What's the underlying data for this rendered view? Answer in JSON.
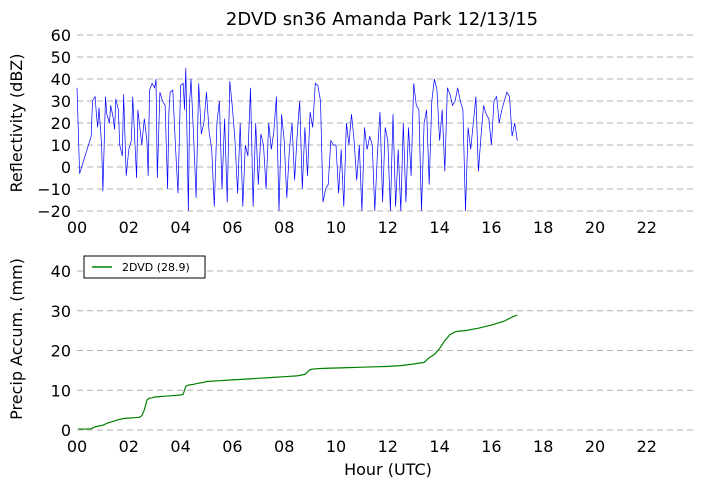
{
  "chart_data": [
    {
      "type": "line",
      "title": "2DVD sn36 Amanda Park 12/13/15",
      "xlabel": "",
      "ylabel": "Reflectivity (dBZ)",
      "xlim": [
        0,
        24
      ],
      "ylim": [
        -20,
        60
      ],
      "grid": "horizontal dashed",
      "x_tick_labels": [
        "00",
        "02",
        "04",
        "06",
        "08",
        "10",
        "12",
        "14",
        "16",
        "18",
        "20",
        "22"
      ],
      "x_tick_values": [
        0,
        2,
        4,
        6,
        8,
        10,
        12,
        14,
        16,
        18,
        20,
        22
      ],
      "y_tick_labels": [
        "60",
        "50",
        "40",
        "30",
        "20",
        "10",
        "0",
        "−10",
        "−20"
      ],
      "y_tick_values": [
        60,
        50,
        40,
        30,
        20,
        10,
        0,
        -10,
        -20
      ],
      "series": [
        {
          "color": "#0000ff",
          "x_start": 0.0,
          "x_end": 17.0,
          "data_start": 0.55,
          "peak": {
            "x": 4.2,
            "y": 45
          },
          "typical_range": [
            -20,
            40
          ],
          "x": [
            0.0,
            0.1,
            0.55,
            0.6,
            0.7,
            0.75,
            0.8,
            0.85,
            0.95,
            1.0,
            1.1,
            1.15,
            1.25,
            1.3,
            1.4,
            1.45,
            1.5,
            1.6,
            1.65,
            1.75,
            1.8,
            1.9,
            2.0,
            2.1,
            2.15,
            2.3,
            2.35,
            2.5,
            2.6,
            2.7,
            2.75,
            2.8,
            2.9,
            3.0,
            3.05,
            3.1,
            3.2,
            3.3,
            3.4,
            3.5,
            3.55,
            3.6,
            3.7,
            3.8,
            3.9,
            4.0,
            4.1,
            4.15,
            4.2,
            4.3,
            4.35,
            4.4,
            4.5,
            4.6,
            4.7,
            4.8,
            4.9,
            5.0,
            5.1,
            5.2,
            5.3,
            5.4,
            5.5,
            5.6,
            5.7,
            5.8,
            5.9,
            6.0,
            6.1,
            6.2,
            6.3,
            6.4,
            6.5,
            6.6,
            6.7,
            6.8,
            6.9,
            7.0,
            7.1,
            7.2,
            7.3,
            7.4,
            7.5,
            7.6,
            7.7,
            7.8,
            7.9,
            8.0,
            8.1,
            8.2,
            8.3,
            8.4,
            8.5,
            8.6,
            8.7,
            8.8,
            8.9,
            9.0,
            9.1,
            9.2,
            9.3,
            9.4,
            9.5,
            9.6,
            9.7,
            9.8,
            9.9,
            10.0,
            10.1,
            10.2,
            10.3,
            10.4,
            10.5,
            10.6,
            10.7,
            10.8,
            10.9,
            11.0,
            11.1,
            11.2,
            11.3,
            11.4,
            11.5,
            11.6,
            11.7,
            11.8,
            11.9,
            12.0,
            12.1,
            12.2,
            12.3,
            12.4,
            12.5,
            12.6,
            12.7,
            12.8,
            12.9,
            13.0,
            13.1,
            13.2,
            13.3,
            13.4,
            13.5,
            13.6,
            13.7,
            13.8,
            13.9,
            14.0,
            14.1,
            14.2,
            14.3,
            14.4,
            14.5,
            14.6,
            14.7,
            14.8,
            14.9,
            15.0,
            15.1,
            15.2,
            15.3,
            15.4,
            15.5,
            15.6,
            15.7,
            15.8,
            15.9,
            16.0,
            16.1,
            16.2,
            16.3,
            16.4,
            16.5,
            16.6,
            16.7,
            16.8,
            16.9,
            17.0
          ],
          "y": [
            36,
            -3,
            14,
            30,
            32,
            24,
            18,
            27,
            10,
            -11,
            32,
            24,
            20,
            28,
            22,
            17,
            31,
            26,
            10,
            5,
            33,
            -4,
            8,
            12,
            32,
            -5,
            26,
            10,
            22,
            12,
            -4,
            35,
            38,
            36,
            40,
            -5,
            34,
            30,
            28,
            -10,
            25,
            34,
            35,
            10,
            -12,
            37,
            38,
            26,
            45,
            -20,
            30,
            40,
            14,
            -14,
            38,
            15,
            20,
            34,
            16,
            8,
            -18,
            20,
            30,
            -10,
            22,
            -16,
            39,
            27,
            12,
            -12,
            20,
            -18,
            10,
            5,
            36,
            -18,
            20,
            -8,
            15,
            10,
            -10,
            20,
            8,
            16,
            32,
            -20,
            24,
            12,
            -14,
            8,
            20,
            -6,
            14,
            30,
            -10,
            18,
            -4,
            25,
            18,
            38,
            37,
            30,
            -16,
            -10,
            -8,
            12,
            10,
            10,
            -12,
            8,
            -18,
            20,
            10,
            24,
            12,
            -6,
            10,
            -20,
            18,
            8,
            14,
            10,
            -20,
            6,
            25,
            -16,
            18,
            12,
            -20,
            24,
            -18,
            8,
            -20,
            20,
            -16,
            18,
            -4,
            38,
            28,
            26,
            -20,
            20,
            26,
            -8,
            30,
            40,
            35,
            12,
            26,
            -2,
            36,
            33,
            28,
            30,
            36,
            30,
            26,
            -20,
            18,
            8,
            20,
            32,
            -2,
            14,
            28,
            24,
            22,
            10,
            30,
            32,
            20,
            26,
            30,
            34,
            32,
            14,
            20,
            12
          ]
        }
      ]
    },
    {
      "type": "line",
      "title": "",
      "xlabel": "Hour (UTC)",
      "ylabel": "Precip Accum. (mm)",
      "xlim": [
        0,
        24
      ],
      "ylim": [
        0,
        47
      ],
      "grid": "horizontal dashed",
      "legend_position": "upper-left",
      "x_tick_labels": [
        "00",
        "02",
        "04",
        "06",
        "08",
        "10",
        "12",
        "14",
        "16",
        "18",
        "20",
        "22"
      ],
      "x_tick_values": [
        0,
        2,
        4,
        6,
        8,
        10,
        12,
        14,
        16,
        18,
        20,
        22
      ],
      "y_tick_labels": [
        "40",
        "30",
        "20",
        "10",
        "0"
      ],
      "y_tick_values": [
        40,
        30,
        20,
        10,
        0
      ],
      "series": [
        {
          "name": "2DVD (28.9)",
          "color": "#008000",
          "final_value": 28.9,
          "x": [
            0.05,
            0.2,
            0.55,
            0.7,
            0.85,
            1.0,
            1.2,
            1.4,
            1.6,
            1.8,
            2.0,
            2.2,
            2.4,
            2.5,
            2.6,
            2.7,
            2.75,
            2.8,
            2.9,
            3.0,
            3.2,
            3.4,
            3.6,
            3.8,
            4.0,
            4.1,
            4.2,
            4.3,
            4.5,
            4.7,
            4.9,
            5.0,
            5.5,
            6.0,
            6.5,
            7.0,
            7.5,
            8.0,
            8.5,
            8.8,
            9.0,
            9.2,
            9.5,
            10.0,
            10.5,
            11.0,
            11.5,
            12.0,
            12.5,
            13.0,
            13.4,
            13.6,
            13.8,
            14.0,
            14.2,
            14.4,
            14.6,
            14.8,
            15.0,
            15.5,
            16.0,
            16.5,
            16.8,
            17.0
          ],
          "y": [
            0.3,
            0.2,
            0.3,
            0.8,
            1.0,
            1.2,
            1.8,
            2.2,
            2.6,
            2.9,
            3.0,
            3.1,
            3.2,
            3.6,
            5.0,
            7.5,
            7.8,
            8.0,
            8.1,
            8.3,
            8.4,
            8.5,
            8.6,
            8.7,
            8.8,
            9.0,
            11.0,
            11.3,
            11.5,
            11.8,
            12.0,
            12.2,
            12.4,
            12.6,
            12.8,
            13.0,
            13.2,
            13.4,
            13.6,
            14.0,
            15.2,
            15.4,
            15.5,
            15.6,
            15.7,
            15.8,
            15.9,
            16.0,
            16.2,
            16.6,
            17.0,
            18.2,
            19.0,
            20.5,
            22.5,
            24.0,
            24.7,
            24.9,
            25.0,
            25.6,
            26.4,
            27.4,
            28.4,
            28.9
          ]
        }
      ]
    }
  ]
}
